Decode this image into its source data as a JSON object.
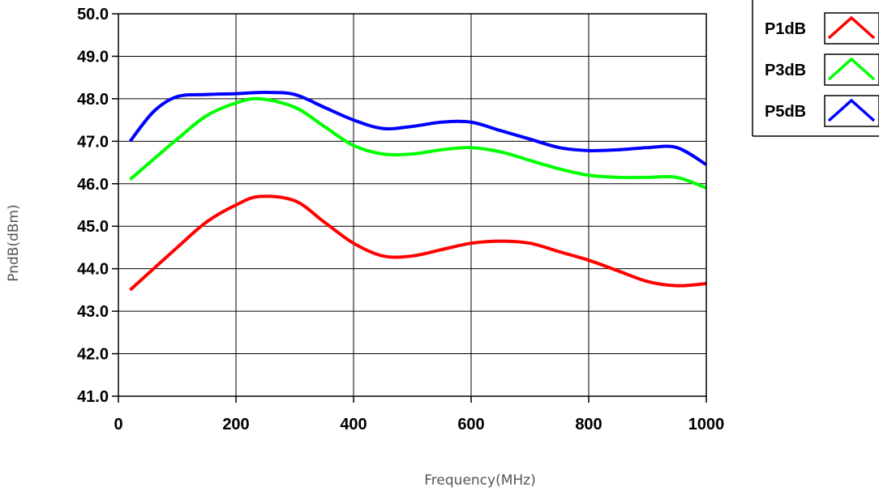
{
  "chart_data": {
    "type": "line",
    "title": "",
    "xlabel": "Frequency(MHz)",
    "ylabel": "PndB(dBm)",
    "xlim": [
      0,
      1000
    ],
    "ylim": [
      41.0,
      50.0
    ],
    "x_ticks": [
      "0",
      "200",
      "400",
      "600",
      "800",
      "1000"
    ],
    "y_ticks": [
      "41.0",
      "42.0",
      "43.0",
      "44.0",
      "45.0",
      "46.0",
      "47.0",
      "48.0",
      "49.0",
      "50.0"
    ],
    "grid": true,
    "legend_position": "top-right",
    "series": [
      {
        "name": "P1dB",
        "color": "#ff0000",
        "x": [
          20,
          100,
          150,
          200,
          240,
          300,
          350,
          400,
          450,
          500,
          550,
          600,
          650,
          700,
          750,
          800,
          850,
          900,
          950,
          1000
        ],
        "y": [
          43.5,
          44.5,
          45.1,
          45.5,
          45.7,
          45.6,
          45.1,
          44.6,
          44.3,
          44.3,
          44.45,
          44.6,
          44.65,
          44.6,
          44.4,
          44.2,
          43.95,
          43.7,
          43.6,
          43.65
        ]
      },
      {
        "name": "P3dB",
        "color": "#00ff00",
        "x": [
          20,
          100,
          150,
          200,
          240,
          300,
          350,
          400,
          450,
          500,
          550,
          600,
          650,
          700,
          750,
          800,
          850,
          900,
          950,
          1000
        ],
        "y": [
          46.1,
          47.05,
          47.6,
          47.9,
          48.0,
          47.8,
          47.35,
          46.9,
          46.7,
          46.7,
          46.8,
          46.85,
          46.75,
          46.55,
          46.35,
          46.2,
          46.15,
          46.15,
          46.15,
          45.9
        ]
      },
      {
        "name": "P5dB",
        "color": "#0000ff",
        "x": [
          20,
          60,
          100,
          150,
          200,
          250,
          300,
          350,
          400,
          450,
          500,
          550,
          600,
          650,
          700,
          750,
          800,
          850,
          900,
          950,
          1000
        ],
        "y": [
          47.0,
          47.7,
          48.05,
          48.1,
          48.12,
          48.15,
          48.1,
          47.8,
          47.5,
          47.3,
          47.35,
          47.45,
          47.45,
          47.25,
          47.05,
          46.85,
          46.78,
          46.8,
          46.85,
          46.85,
          46.45
        ]
      }
    ]
  }
}
